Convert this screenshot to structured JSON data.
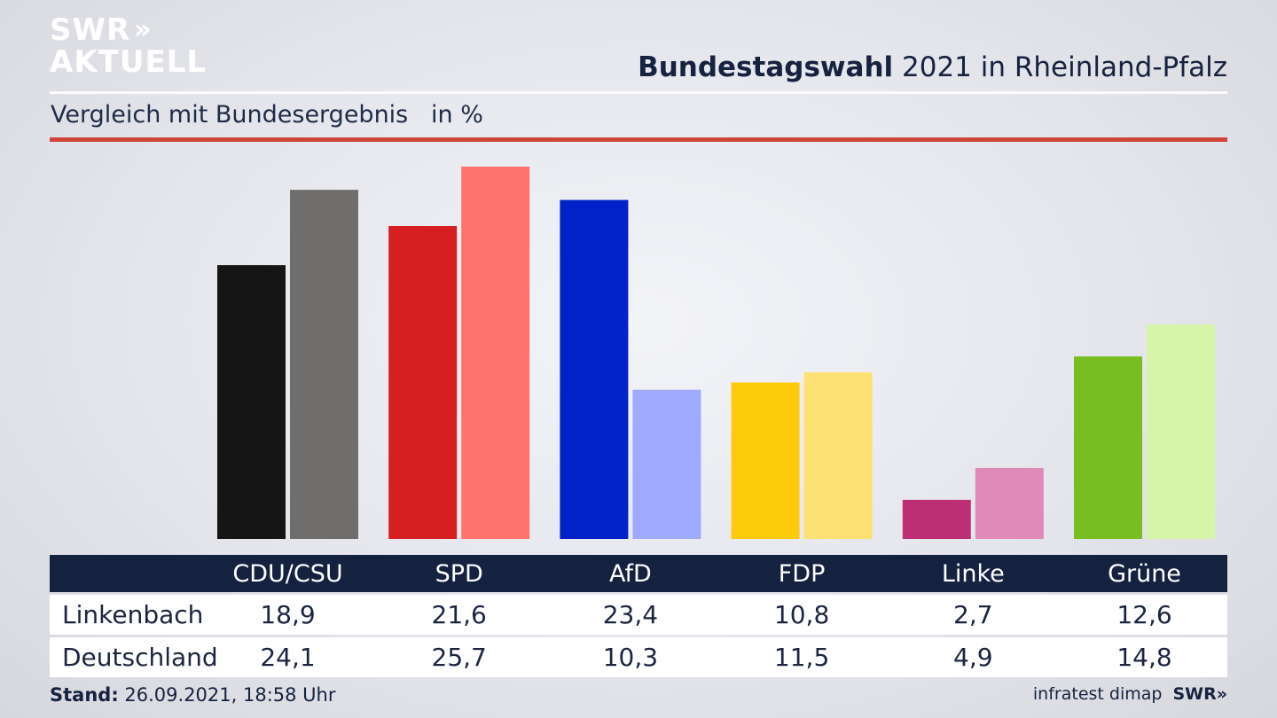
{
  "brand": {
    "line1": "SWR",
    "line2": "AKTUELL",
    "arrows": "»"
  },
  "header": {
    "title_bold": "Bundestagswahl",
    "title_rest": " 2021 in Rheinland-Pfalz"
  },
  "subtitle": "Vergleich mit Bundesergebnis   in %",
  "footer": {
    "stand_label": "Stand:",
    "stand_value": " 26.09.2021, 18:58 Uhr",
    "source": "infratest dimap",
    "swr": "SWR»"
  },
  "chart_data": {
    "type": "bar",
    "categories": [
      "CDU/CSU",
      "SPD",
      "AfD",
      "FDP",
      "Linke",
      "Grüne"
    ],
    "series": [
      {
        "name": "Linkenbach",
        "values": [
          18.9,
          21.6,
          23.4,
          10.8,
          2.7,
          12.6
        ],
        "colors": [
          "#151515",
          "#d51f20",
          "#0022c8",
          "#fecb0c",
          "#bd2f74",
          "#78be20"
        ]
      },
      {
        "name": "Deutschland",
        "values": [
          24.1,
          25.7,
          10.3,
          11.5,
          4.9,
          14.8
        ],
        "colors": [
          "#6f6e6c",
          "#ff736d",
          "#9faaff",
          "#fde172",
          "#df8ab8",
          "#d6f5a9"
        ]
      }
    ],
    "ylim": [
      0,
      25.7
    ],
    "grid": false,
    "legend": "table-bottom"
  }
}
